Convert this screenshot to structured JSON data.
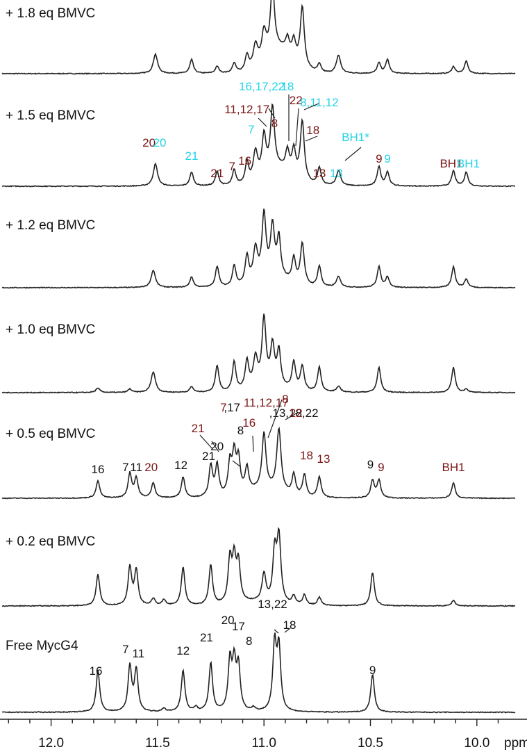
{
  "chart_data": {
    "type": "line",
    "xlabel": "ppm",
    "x_range": [
      12.24,
      9.82
    ],
    "x_ticks": [
      "12.0",
      "11.5",
      "11.0",
      "10.5",
      "10.0"
    ],
    "x_tick_values": [
      12.0,
      11.5,
      11.0,
      10.5,
      10.0
    ],
    "colors": {
      "line": "#222222",
      "black_label": "#111111",
      "red_label": "#7a1515",
      "cyan_label": "#22d4e6"
    },
    "spectra": [
      {
        "name": "+ 1.8 eq BMVC",
        "peaks": [
          {
            "ppm": 11.51,
            "h": 0.28,
            "w": 0.012
          },
          {
            "ppm": 11.34,
            "h": 0.2,
            "w": 0.01
          },
          {
            "ppm": 11.22,
            "h": 0.1,
            "w": 0.01
          },
          {
            "ppm": 11.14,
            "h": 0.14,
            "w": 0.01
          },
          {
            "ppm": 11.08,
            "h": 0.22,
            "w": 0.01
          },
          {
            "ppm": 11.04,
            "h": 0.3,
            "w": 0.012
          },
          {
            "ppm": 11.0,
            "h": 0.38,
            "w": 0.012
          },
          {
            "ppm": 10.96,
            "h": 0.95,
            "w": 0.011
          },
          {
            "ppm": 10.89,
            "h": 0.2,
            "w": 0.01
          },
          {
            "ppm": 10.86,
            "h": 0.25,
            "w": 0.01
          },
          {
            "ppm": 10.82,
            "h": 0.85,
            "w": 0.011
          },
          {
            "ppm": 10.74,
            "h": 0.12,
            "w": 0.01
          },
          {
            "ppm": 10.65,
            "h": 0.26,
            "w": 0.012
          },
          {
            "ppm": 10.46,
            "h": 0.15,
            "w": 0.01
          },
          {
            "ppm": 10.42,
            "h": 0.2,
            "w": 0.01
          },
          {
            "ppm": 10.11,
            "h": 0.1,
            "w": 0.01
          },
          {
            "ppm": 10.05,
            "h": 0.18,
            "w": 0.01
          }
        ],
        "broad": [
          {
            "ppm": 10.93,
            "h": 0.35,
            "w": 0.1
          }
        ]
      },
      {
        "name": "+ 1.5 eq BMVC",
        "peaks": [
          {
            "ppm": 11.51,
            "h": 0.32,
            "w": 0.012
          },
          {
            "ppm": 11.34,
            "h": 0.2,
            "w": 0.01
          },
          {
            "ppm": 11.22,
            "h": 0.2,
            "w": 0.01
          },
          {
            "ppm": 11.14,
            "h": 0.22,
            "w": 0.01
          },
          {
            "ppm": 11.08,
            "h": 0.3,
            "w": 0.01
          },
          {
            "ppm": 11.04,
            "h": 0.4,
            "w": 0.012
          },
          {
            "ppm": 11.0,
            "h": 0.55,
            "w": 0.011
          },
          {
            "ppm": 10.96,
            "h": 0.9,
            "w": 0.011
          },
          {
            "ppm": 10.89,
            "h": 0.28,
            "w": 0.01
          },
          {
            "ppm": 10.86,
            "h": 0.35,
            "w": 0.01
          },
          {
            "ppm": 10.82,
            "h": 0.85,
            "w": 0.011
          },
          {
            "ppm": 10.74,
            "h": 0.25,
            "w": 0.01
          },
          {
            "ppm": 10.65,
            "h": 0.22,
            "w": 0.012
          },
          {
            "ppm": 10.46,
            "h": 0.28,
            "w": 0.01
          },
          {
            "ppm": 10.42,
            "h": 0.2,
            "w": 0.01
          },
          {
            "ppm": 10.11,
            "h": 0.22,
            "w": 0.01
          },
          {
            "ppm": 10.05,
            "h": 0.2,
            "w": 0.01
          }
        ],
        "broad": [
          {
            "ppm": 10.93,
            "h": 0.25,
            "w": 0.1
          }
        ]
      },
      {
        "name": "+ 1.2 eq BMVC",
        "peaks": [
          {
            "ppm": 11.52,
            "h": 0.25,
            "w": 0.012
          },
          {
            "ppm": 11.34,
            "h": 0.15,
            "w": 0.01
          },
          {
            "ppm": 11.22,
            "h": 0.3,
            "w": 0.01
          },
          {
            "ppm": 11.14,
            "h": 0.3,
            "w": 0.01
          },
          {
            "ppm": 11.08,
            "h": 0.4,
            "w": 0.01
          },
          {
            "ppm": 11.04,
            "h": 0.45,
            "w": 0.012
          },
          {
            "ppm": 11.0,
            "h": 0.9,
            "w": 0.011
          },
          {
            "ppm": 10.96,
            "h": 0.7,
            "w": 0.011
          },
          {
            "ppm": 10.93,
            "h": 0.55,
            "w": 0.01
          },
          {
            "ppm": 10.86,
            "h": 0.35,
            "w": 0.01
          },
          {
            "ppm": 10.82,
            "h": 0.6,
            "w": 0.011
          },
          {
            "ppm": 10.74,
            "h": 0.3,
            "w": 0.01
          },
          {
            "ppm": 10.65,
            "h": 0.15,
            "w": 0.012
          },
          {
            "ppm": 10.46,
            "h": 0.3,
            "w": 0.01
          },
          {
            "ppm": 10.42,
            "h": 0.15,
            "w": 0.01
          },
          {
            "ppm": 10.11,
            "h": 0.3,
            "w": 0.01
          },
          {
            "ppm": 10.05,
            "h": 0.12,
            "w": 0.01
          }
        ],
        "broad": [
          {
            "ppm": 10.96,
            "h": 0.15,
            "w": 0.1
          }
        ]
      },
      {
        "name": "+ 1.0 eq BMVC",
        "peaks": [
          {
            "ppm": 11.78,
            "h": 0.06,
            "w": 0.012
          },
          {
            "ppm": 11.63,
            "h": 0.05,
            "w": 0.01
          },
          {
            "ppm": 11.52,
            "h": 0.3,
            "w": 0.012
          },
          {
            "ppm": 11.34,
            "h": 0.08,
            "w": 0.01
          },
          {
            "ppm": 11.22,
            "h": 0.38,
            "w": 0.01
          },
          {
            "ppm": 11.14,
            "h": 0.42,
            "w": 0.01
          },
          {
            "ppm": 11.08,
            "h": 0.4,
            "w": 0.01
          },
          {
            "ppm": 11.04,
            "h": 0.4,
            "w": 0.012
          },
          {
            "ppm": 11.0,
            "h": 0.95,
            "w": 0.011
          },
          {
            "ppm": 10.96,
            "h": 0.55,
            "w": 0.011
          },
          {
            "ppm": 10.93,
            "h": 0.5,
            "w": 0.01
          },
          {
            "ppm": 10.86,
            "h": 0.4,
            "w": 0.01
          },
          {
            "ppm": 10.82,
            "h": 0.35,
            "w": 0.011
          },
          {
            "ppm": 10.74,
            "h": 0.36,
            "w": 0.01
          },
          {
            "ppm": 10.65,
            "h": 0.08,
            "w": 0.012
          },
          {
            "ppm": 10.46,
            "h": 0.36,
            "w": 0.01
          },
          {
            "ppm": 10.11,
            "h": 0.36,
            "w": 0.01
          },
          {
            "ppm": 10.05,
            "h": 0.05,
            "w": 0.01
          }
        ],
        "broad": [
          {
            "ppm": 10.98,
            "h": 0.1,
            "w": 0.1
          }
        ]
      },
      {
        "name": "+ 0.5 eq BMVC",
        "peaks": [
          {
            "ppm": 11.78,
            "h": 0.25,
            "w": 0.01
          },
          {
            "ppm": 11.63,
            "h": 0.35,
            "w": 0.01
          },
          {
            "ppm": 11.6,
            "h": 0.28,
            "w": 0.01
          },
          {
            "ppm": 11.52,
            "h": 0.22,
            "w": 0.01
          },
          {
            "ppm": 11.38,
            "h": 0.3,
            "w": 0.01
          },
          {
            "ppm": 11.25,
            "h": 0.45,
            "w": 0.01
          },
          {
            "ppm": 11.22,
            "h": 0.45,
            "w": 0.01
          },
          {
            "ppm": 11.16,
            "h": 0.45,
            "w": 0.01
          },
          {
            "ppm": 11.14,
            "h": 0.55,
            "w": 0.01
          },
          {
            "ppm": 11.12,
            "h": 0.48,
            "w": 0.01
          },
          {
            "ppm": 11.08,
            "h": 0.35,
            "w": 0.01
          },
          {
            "ppm": 11.0,
            "h": 0.8,
            "w": 0.011
          },
          {
            "ppm": 10.93,
            "h": 0.9,
            "w": 0.012
          },
          {
            "ppm": 10.86,
            "h": 0.3,
            "w": 0.01
          },
          {
            "ppm": 10.81,
            "h": 0.32,
            "w": 0.01
          },
          {
            "ppm": 10.74,
            "h": 0.3,
            "w": 0.01
          },
          {
            "ppm": 10.49,
            "h": 0.25,
            "w": 0.01
          },
          {
            "ppm": 10.46,
            "h": 0.25,
            "w": 0.01
          },
          {
            "ppm": 10.11,
            "h": 0.22,
            "w": 0.01
          }
        ],
        "broad": [
          {
            "ppm": 11.0,
            "h": 0.12,
            "w": 0.12
          }
        ]
      },
      {
        "name": "+ 0.2 eq BMVC",
        "peaks": [
          {
            "ppm": 11.78,
            "h": 0.45,
            "w": 0.01
          },
          {
            "ppm": 11.63,
            "h": 0.55,
            "w": 0.01
          },
          {
            "ppm": 11.6,
            "h": 0.5,
            "w": 0.01
          },
          {
            "ppm": 11.52,
            "h": 0.1,
            "w": 0.01
          },
          {
            "ppm": 11.47,
            "h": 0.08,
            "w": 0.01
          },
          {
            "ppm": 11.38,
            "h": 0.55,
            "w": 0.01
          },
          {
            "ppm": 11.25,
            "h": 0.58,
            "w": 0.01
          },
          {
            "ppm": 11.16,
            "h": 0.62,
            "w": 0.01
          },
          {
            "ppm": 11.14,
            "h": 0.6,
            "w": 0.01
          },
          {
            "ppm": 11.12,
            "h": 0.55,
            "w": 0.01
          },
          {
            "ppm": 11.0,
            "h": 0.4,
            "w": 0.011
          },
          {
            "ppm": 10.95,
            "h": 0.7,
            "w": 0.01
          },
          {
            "ppm": 10.93,
            "h": 0.95,
            "w": 0.011
          },
          {
            "ppm": 10.86,
            "h": 0.12,
            "w": 0.01
          },
          {
            "ppm": 10.81,
            "h": 0.15,
            "w": 0.01
          },
          {
            "ppm": 10.74,
            "h": 0.12,
            "w": 0.01
          },
          {
            "ppm": 10.49,
            "h": 0.48,
            "w": 0.01
          },
          {
            "ppm": 10.11,
            "h": 0.08,
            "w": 0.01
          }
        ],
        "broad": [
          {
            "ppm": 11.05,
            "h": 0.05,
            "w": 0.12
          }
        ]
      },
      {
        "name": "Free MycG4",
        "peaks": [
          {
            "ppm": 11.78,
            "h": 0.6,
            "w": 0.01
          },
          {
            "ppm": 11.63,
            "h": 0.65,
            "w": 0.01
          },
          {
            "ppm": 11.6,
            "h": 0.6,
            "w": 0.01
          },
          {
            "ppm": 11.47,
            "h": 0.05,
            "w": 0.01
          },
          {
            "ppm": 11.38,
            "h": 0.6,
            "w": 0.01
          },
          {
            "ppm": 11.32,
            "h": 0.06,
            "w": 0.01
          },
          {
            "ppm": 11.25,
            "h": 0.7,
            "w": 0.01
          },
          {
            "ppm": 11.16,
            "h": 0.7,
            "w": 0.01
          },
          {
            "ppm": 11.14,
            "h": 0.65,
            "w": 0.01
          },
          {
            "ppm": 11.12,
            "h": 0.62,
            "w": 0.01
          },
          {
            "ppm": 11.05,
            "h": 0.05,
            "w": 0.01
          },
          {
            "ppm": 10.95,
            "h": 0.95,
            "w": 0.01
          },
          {
            "ppm": 10.93,
            "h": 0.9,
            "w": 0.01
          },
          {
            "ppm": 10.49,
            "h": 0.55,
            "w": 0.01
          }
        ],
        "broad": []
      }
    ],
    "annotations": [
      {
        "spectrum": 0,
        "text": "+ 1.8 eq BMVC",
        "kind": "title"
      },
      {
        "spectrum": 1,
        "text": "+ 1.5 eq BMVC",
        "kind": "title"
      },
      {
        "spectrum": 2,
        "text": "+ 1.2 eq BMVC",
        "kind": "title"
      },
      {
        "spectrum": 3,
        "text": "+ 1.0 eq BMVC",
        "kind": "title"
      },
      {
        "spectrum": 4,
        "text": "+ 0.5 eq BMVC",
        "kind": "title"
      },
      {
        "spectrum": 5,
        "text": "+ 0.2 eq BMVC",
        "kind": "title"
      },
      {
        "spectrum": 6,
        "text": "Free MycG4",
        "kind": "title"
      }
    ],
    "peak_labels": [
      {
        "spectrum": 1,
        "text": "20",
        "color": "red",
        "ppm": 11.54
      },
      {
        "spectrum": 1,
        "text": "20",
        "color": "cyan",
        "ppm": 11.49
      },
      {
        "spectrum": 1,
        "text": "21",
        "color": "cyan",
        "ppm": 11.34
      },
      {
        "spectrum": 1,
        "text": "21",
        "color": "red",
        "ppm": 11.22
      },
      {
        "spectrum": 1,
        "text": "7",
        "color": "red",
        "ppm": 11.15
      },
      {
        "spectrum": 1,
        "text": "16",
        "color": "red",
        "ppm": 11.09
      },
      {
        "spectrum": 1,
        "text": "7",
        "color": "cyan",
        "ppm": 11.06
      },
      {
        "spectrum": 1,
        "text": "11,12,17",
        "color": "red",
        "ppm": 11.08
      },
      {
        "spectrum": 1,
        "text": "16,17,22",
        "color": "cyan",
        "ppm": 11.01
      },
      {
        "spectrum": 1,
        "text": "8",
        "color": "red",
        "ppm": 10.95
      },
      {
        "spectrum": 1,
        "text": "18",
        "color": "cyan",
        "ppm": 10.89
      },
      {
        "spectrum": 1,
        "text": "22",
        "color": "red",
        "ppm": 10.85
      },
      {
        "spectrum": 1,
        "text": "8,11,12",
        "color": "cyan",
        "ppm": 10.74
      },
      {
        "spectrum": 1,
        "text": "18",
        "color": "red",
        "ppm": 10.77
      },
      {
        "spectrum": 1,
        "text": "13",
        "color": "red",
        "ppm": 10.74
      },
      {
        "spectrum": 1,
        "text": "13",
        "color": "cyan",
        "ppm": 10.66
      },
      {
        "spectrum": 1,
        "text": "BH1*",
        "color": "cyan",
        "ppm": 10.57
      },
      {
        "spectrum": 1,
        "text": "9",
        "color": "red",
        "ppm": 10.46
      },
      {
        "spectrum": 1,
        "text": "9",
        "color": "cyan",
        "ppm": 10.42
      },
      {
        "spectrum": 1,
        "text": "BH1",
        "color": "red",
        "ppm": 10.12
      },
      {
        "spectrum": 1,
        "text": "BH1",
        "color": "cyan",
        "ppm": 10.04
      },
      {
        "spectrum": 4,
        "text": "16",
        "color": "black",
        "ppm": 11.78
      },
      {
        "spectrum": 4,
        "text": "7",
        "color": "black",
        "ppm": 11.65
      },
      {
        "spectrum": 4,
        "text": "11",
        "color": "black",
        "ppm": 11.6
      },
      {
        "spectrum": 4,
        "text": "20",
        "color": "red",
        "ppm": 11.53
      },
      {
        "spectrum": 4,
        "text": "12",
        "color": "black",
        "ppm": 11.39
      },
      {
        "spectrum": 4,
        "text": "21",
        "color": "red",
        "ppm": 11.31
      },
      {
        "spectrum": 4,
        "text": "21",
        "color": "black",
        "ppm": 11.26
      },
      {
        "spectrum": 4,
        "text": "20",
        "color": "black",
        "ppm": 11.22
      },
      {
        "spectrum": 4,
        "text": "7",
        "color": "red",
        "ppm": 11.19
      },
      {
        "spectrum": 4,
        "text": ",17",
        "color": "black",
        "ppm": 11.15
      },
      {
        "spectrum": 4,
        "text": "8",
        "color": "black",
        "ppm": 11.11
      },
      {
        "spectrum": 4,
        "text": "16",
        "color": "red",
        "ppm": 11.07
      },
      {
        "spectrum": 4,
        "text": "11,12,17",
        "color": "red",
        "ppm": 10.99
      },
      {
        "spectrum": 4,
        "text": "8",
        "color": "red",
        "ppm": 10.9
      },
      {
        "spectrum": 4,
        "text": ",13,18,22",
        "color": "black",
        "ppm": 10.86
      },
      {
        "spectrum": 4,
        "text": "22",
        "color": "red",
        "ppm": 10.85
      },
      {
        "spectrum": 4,
        "text": "18",
        "color": "red",
        "ppm": 10.8
      },
      {
        "spectrum": 4,
        "text": "13",
        "color": "red",
        "ppm": 10.72
      },
      {
        "spectrum": 4,
        "text": "9",
        "color": "black",
        "ppm": 10.5
      },
      {
        "spectrum": 4,
        "text": "9",
        "color": "red",
        "ppm": 10.45
      },
      {
        "spectrum": 4,
        "text": "BH1",
        "color": "red",
        "ppm": 10.11
      },
      {
        "spectrum": 6,
        "text": "16",
        "color": "black",
        "ppm": 11.79
      },
      {
        "spectrum": 6,
        "text": "7",
        "color": "black",
        "ppm": 11.65
      },
      {
        "spectrum": 6,
        "text": "11",
        "color": "black",
        "ppm": 11.59
      },
      {
        "spectrum": 6,
        "text": "12",
        "color": "black",
        "ppm": 11.38
      },
      {
        "spectrum": 6,
        "text": "21",
        "color": "black",
        "ppm": 11.27
      },
      {
        "spectrum": 6,
        "text": "20",
        "color": "black",
        "ppm": 11.17
      },
      {
        "spectrum": 6,
        "text": "17",
        "color": "black",
        "ppm": 11.12
      },
      {
        "spectrum": 6,
        "text": "8",
        "color": "black",
        "ppm": 11.07
      },
      {
        "spectrum": 6,
        "text": "13,22",
        "color": "black",
        "ppm": 10.96
      },
      {
        "spectrum": 6,
        "text": "18",
        "color": "black",
        "ppm": 10.88
      },
      {
        "spectrum": 6,
        "text": "9",
        "color": "black",
        "ppm": 10.49
      }
    ]
  }
}
